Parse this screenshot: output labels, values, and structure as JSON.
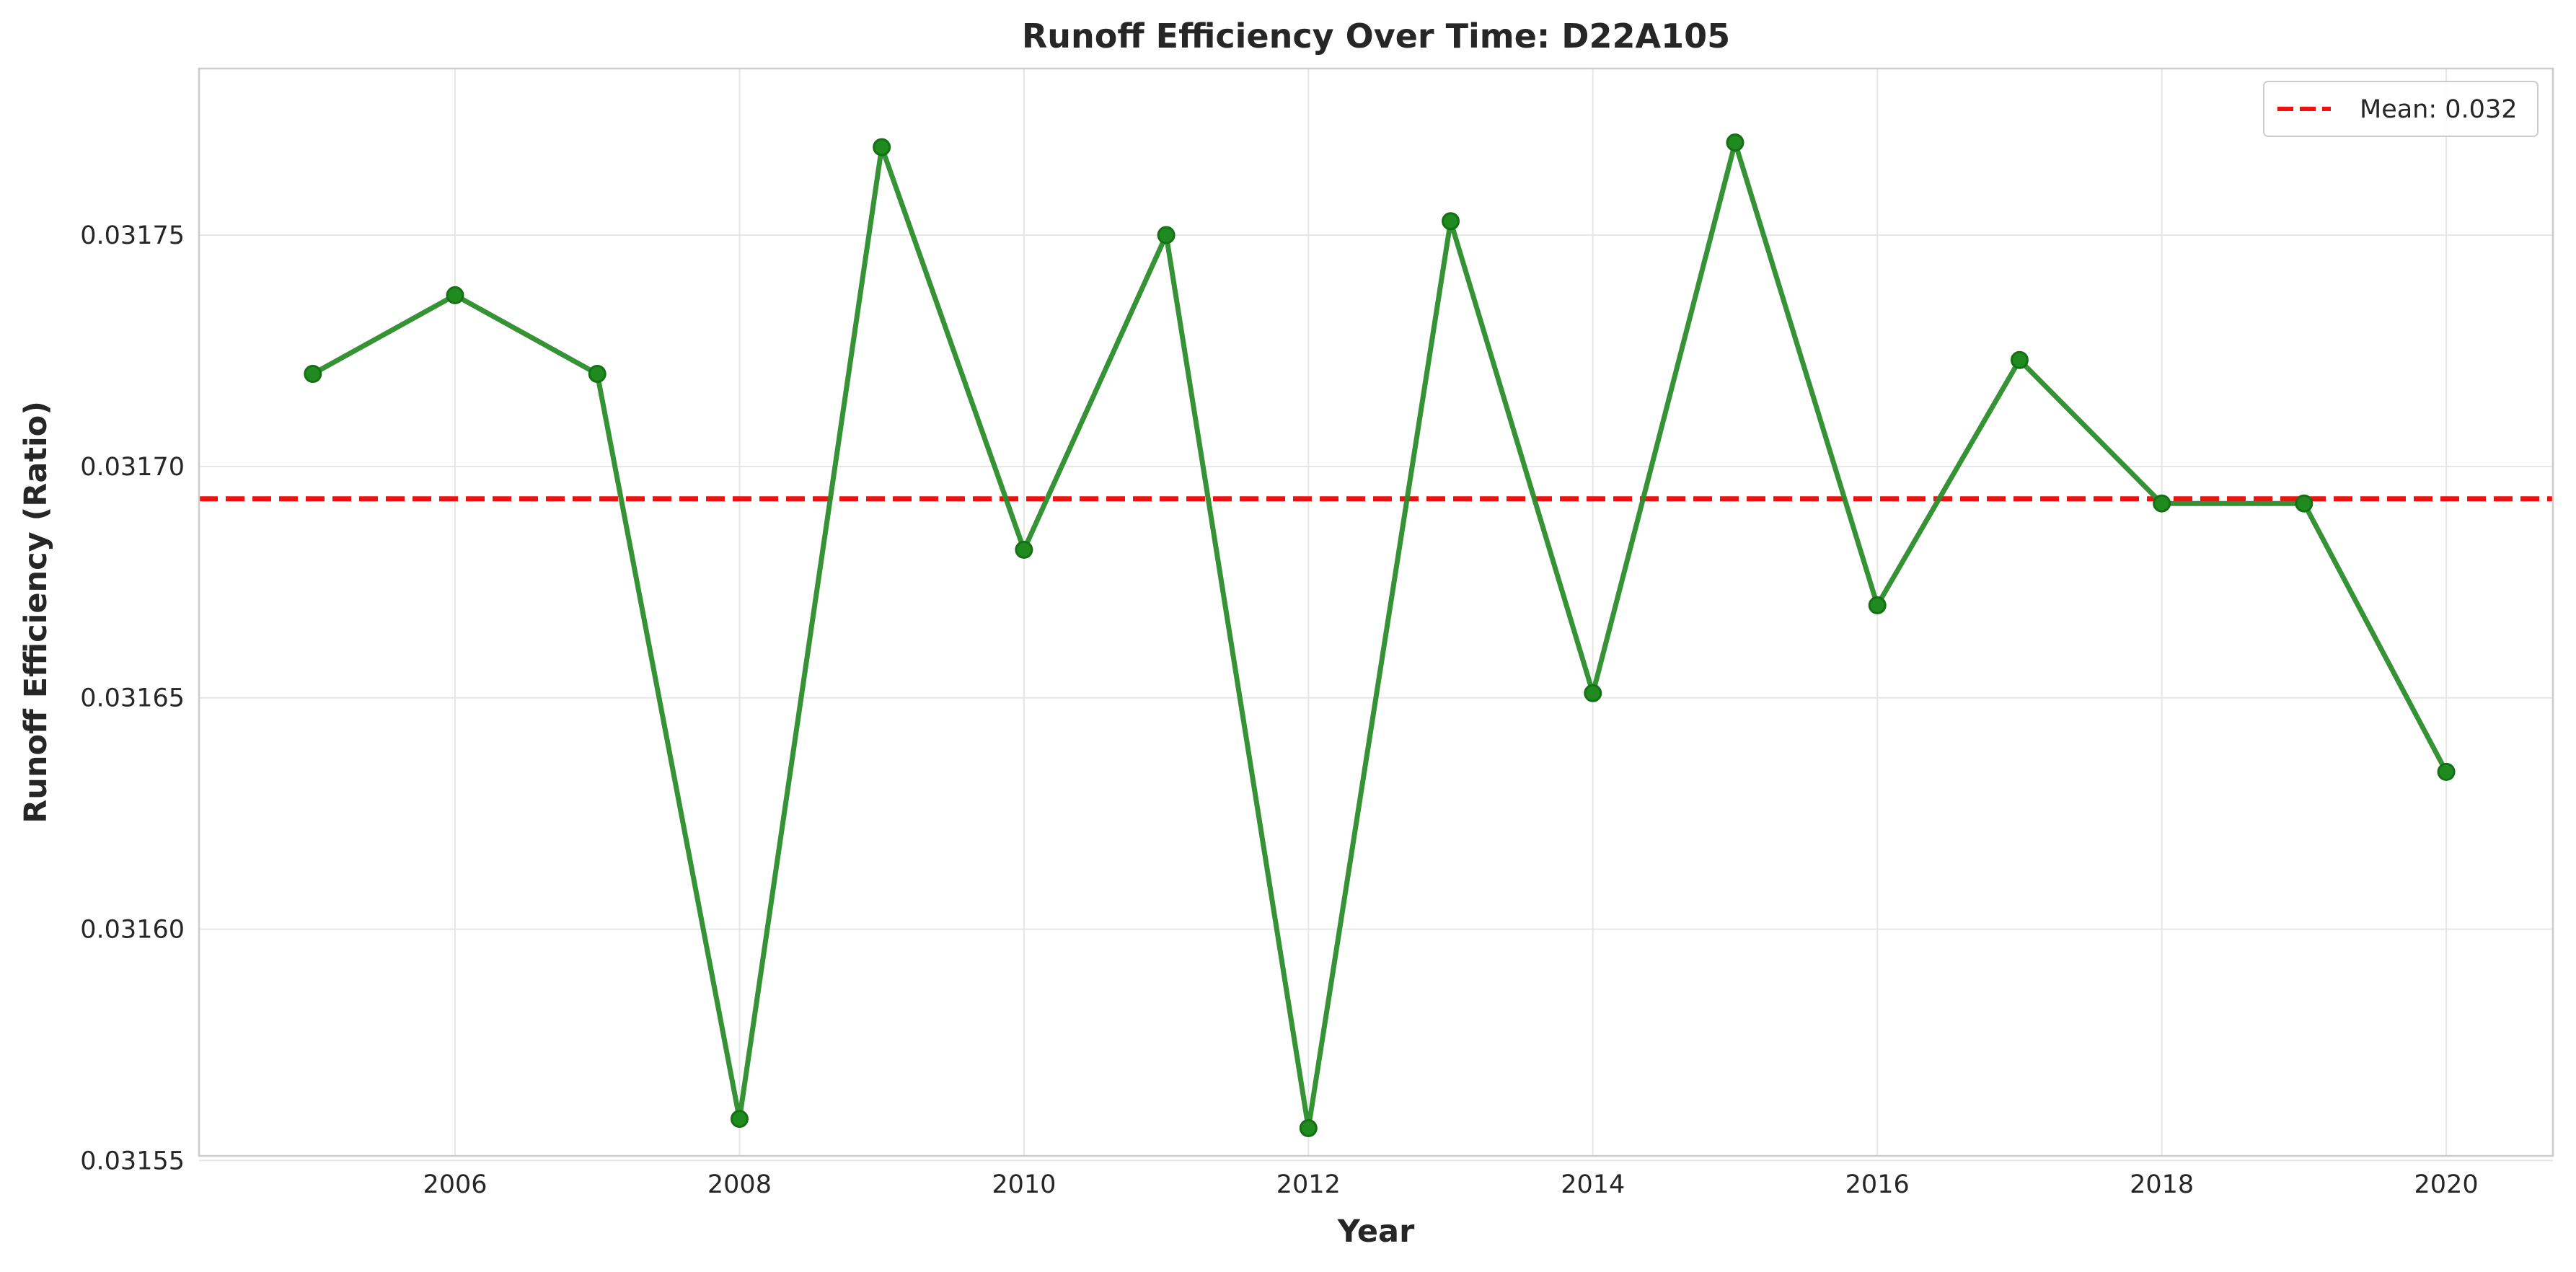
{
  "chart_data": {
    "type": "line",
    "title": "Runoff Efficiency Over Time: D22A105",
    "xlabel": "Year",
    "ylabel": "Runoff Efficiency (Ratio)",
    "x": [
      2005,
      2006,
      2007,
      2008,
      2009,
      2010,
      2011,
      2012,
      2013,
      2014,
      2015,
      2016,
      2017,
      2018,
      2019,
      2020
    ],
    "series": [
      {
        "values": [
          0.03172,
          0.031737,
          0.03172,
          0.031559,
          0.031769,
          0.031682,
          0.03175,
          0.031557,
          0.031753,
          0.031651,
          0.03177,
          0.03167,
          0.031723,
          0.031692,
          0.031692,
          0.031634
        ],
        "color": "#2a8c2a",
        "marker": "circle"
      }
    ],
    "reference_line": {
      "label": "Mean: 0.032",
      "value": 0.031693,
      "color": "#ee1111",
      "style": "dashed"
    },
    "xlim": [
      2004.2,
      2020.75
    ],
    "ylim": [
      0.031551,
      0.031786
    ],
    "xticks": [
      2006,
      2008,
      2010,
      2012,
      2014,
      2016,
      2018,
      2020
    ],
    "xtick_labels": [
      "2006",
      "2008",
      "2010",
      "2012",
      "2014",
      "2016",
      "2018",
      "2020"
    ],
    "yticks": [
      0.03155,
      0.0316,
      0.03165,
      0.0317,
      0.03175
    ],
    "ytick_labels": [
      "0.03155",
      "0.03160",
      "0.03165",
      "0.03170",
      "0.03175"
    ],
    "grid": true,
    "legend_position": "top-right"
  }
}
